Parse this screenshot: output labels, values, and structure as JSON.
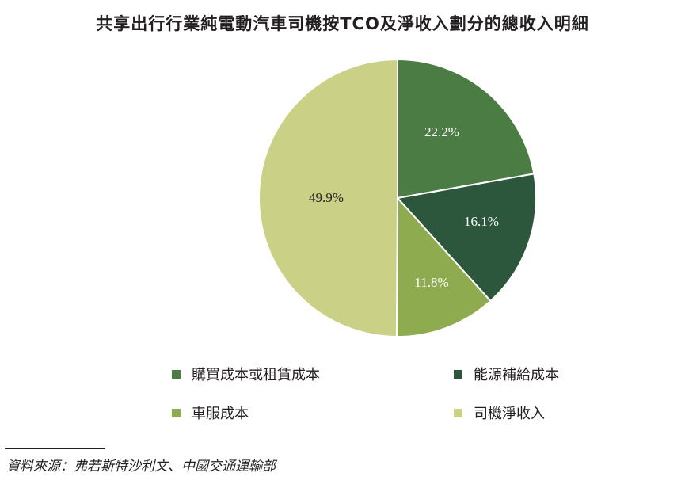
{
  "chart_data": {
    "type": "pie",
    "title": "共享出行行業純電動汽車司機按TCO及淨收入劃分的總收入明細",
    "categories": [
      "購買成本或租賃成本",
      "能源補給成本",
      "車服成本",
      "司機淨收入"
    ],
    "values": [
      22.2,
      16.1,
      11.8,
      49.9
    ],
    "labels": [
      "22.2%",
      "16.1%",
      "11.8%",
      "49.9%"
    ],
    "colors": [
      "#4b7c44",
      "#2c573d",
      "#8fab4f",
      "#cad187"
    ],
    "legend_position": "bottom"
  },
  "source": "資料來源：弗若斯特沙利文、中國交通運輸部"
}
